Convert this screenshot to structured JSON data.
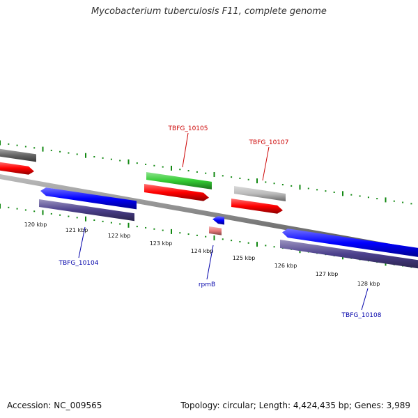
{
  "title": "Mycobacterium tuberculosis F11, complete genome",
  "footer": {
    "accession": "Accession: NC_009565",
    "summary": "Topology: circular; Length: 4,424,435 bp; Genes: 3,989"
  },
  "colors": {
    "forward_cds": "#ff0000",
    "reverse_cds": "#0000ff",
    "forward_gene": "#33cc33",
    "reverse_gene": "#4b3f8c",
    "pseudo_gene": "#bbbbbb",
    "rna": "#e87878",
    "backbone": "#888888",
    "tick": "#118811",
    "forward_label": "#cc0000",
    "reverse_label": "#0000aa"
  },
  "scale_labels": [
    "120 kbp",
    "121 kbp",
    "122 kbp",
    "123 kbp",
    "124 kbp",
    "125 kbp",
    "126 kbp",
    "127 kbp",
    "128 kbp"
  ],
  "gene_labels": [
    {
      "id": "tbfg-10105",
      "text": "TBFG_10105",
      "strand": "forward"
    },
    {
      "id": "tbfg-10107",
      "text": "TBFG_10107",
      "strand": "forward"
    },
    {
      "id": "tbfg-10104",
      "text": "TBFG_10104",
      "strand": "reverse"
    },
    {
      "id": "rpmb",
      "text": "rpmB",
      "strand": "reverse"
    },
    {
      "id": "tbfg-10108",
      "text": "TBFG_10108",
      "strand": "reverse"
    }
  ]
}
